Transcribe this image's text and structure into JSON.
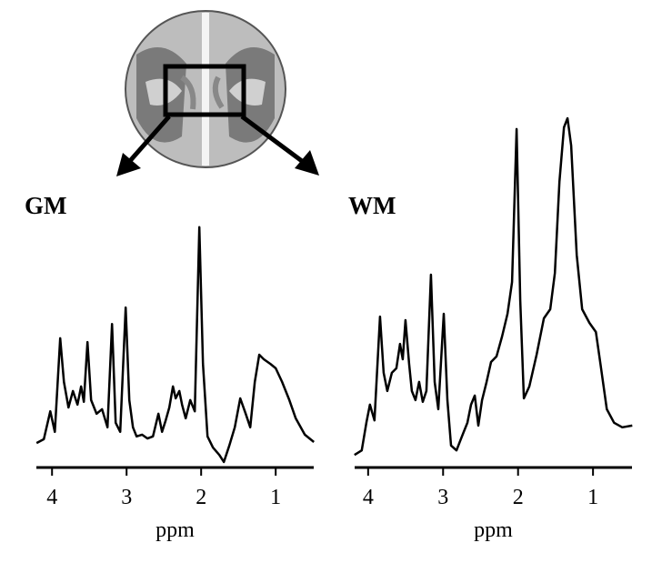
{
  "chart_data": [
    {
      "type": "line",
      "title": "GM",
      "xlabel": "ppm",
      "color": "#000000",
      "xlim": [
        4.21,
        0.49
      ],
      "xticks": [
        4,
        3,
        2,
        1
      ],
      "ylim": [
        0,
        100
      ],
      "x": [
        4.207,
        4.11,
        4.024,
        3.963,
        3.89,
        3.841,
        3.78,
        3.72,
        3.659,
        3.61,
        3.573,
        3.524,
        3.476,
        3.402,
        3.329,
        3.256,
        3.195,
        3.146,
        3.085,
        3.012,
        2.963,
        2.915,
        2.866,
        2.793,
        2.72,
        2.646,
        2.573,
        2.524,
        2.476,
        2.427,
        2.378,
        2.341,
        2.293,
        2.256,
        2.207,
        2.146,
        2.085,
        2.024,
        1.976,
        1.915,
        1.841,
        1.756,
        1.695,
        1.622,
        1.549,
        1.476,
        1.402,
        1.341,
        1.28,
        1.22,
        1.159,
        1.073,
        1.0,
        0.915,
        0.817,
        0.732,
        0.61,
        0.488
      ],
      "values": [
        7.0,
        8.1,
        16.1,
        10.2,
        37.0,
        24.5,
        17.2,
        21.9,
        18.0,
        23.2,
        18.8,
        35.9,
        19.3,
        15.4,
        16.7,
        11.5,
        41.1,
        12.8,
        10.2,
        45.8,
        19.3,
        11.5,
        8.9,
        9.4,
        8.3,
        8.9,
        15.4,
        10.2,
        13.5,
        17.2,
        23.2,
        19.8,
        21.9,
        18.0,
        14.1,
        19.3,
        16.1,
        68.8,
        29.7,
        8.9,
        5.7,
        3.6,
        1.6,
        6.3,
        11.5,
        19.8,
        15.4,
        11.5,
        24.5,
        32.3,
        31.0,
        29.7,
        28.4,
        24.5,
        19.3,
        14.1,
        9.4,
        7.3
      ]
    },
    {
      "type": "line",
      "title": "WM",
      "xlabel": "ppm",
      "color": "#000000",
      "xlim": [
        4.18,
        0.48
      ],
      "xticks": [
        4,
        3,
        2,
        1
      ],
      "ylim": [
        0,
        100
      ],
      "x": [
        4.182,
        4.085,
        4.024,
        3.976,
        3.915,
        3.842,
        3.793,
        3.745,
        3.684,
        3.623,
        3.575,
        3.538,
        3.502,
        3.453,
        3.417,
        3.368,
        3.32,
        3.271,
        3.223,
        3.162,
        3.113,
        3.064,
        2.991,
        2.943,
        2.894,
        2.821,
        2.748,
        2.676,
        2.627,
        2.578,
        2.53,
        2.481,
        2.42,
        2.36,
        2.287,
        2.214,
        2.141,
        2.08,
        2.019,
        1.971,
        1.922,
        1.849,
        1.752,
        1.655,
        1.57,
        1.509,
        1.448,
        1.388,
        1.34,
        1.291,
        1.218,
        1.145,
        1.048,
        0.962,
        0.901,
        0.816,
        0.719,
        0.61,
        0.476
      ],
      "values": [
        3.6,
        4.9,
        12.8,
        18.0,
        13.5,
        43.2,
        27.1,
        21.9,
        27.1,
        28.4,
        35.4,
        31.0,
        42.2,
        29.7,
        21.9,
        19.3,
        24.5,
        18.8,
        21.9,
        55.2,
        24.5,
        16.7,
        44.0,
        19.3,
        6.3,
        4.9,
        8.9,
        12.8,
        18.0,
        20.6,
        12.0,
        19.3,
        24.5,
        30.2,
        31.8,
        37.5,
        44.0,
        53.1,
        96.9,
        47.9,
        19.8,
        23.2,
        32.3,
        42.7,
        45.3,
        55.7,
        81.8,
        97.4,
        100,
        92.2,
        60.9,
        45.3,
        41.4,
        38.8,
        29.7,
        16.7,
        12.8,
        11.5,
        12.0
      ]
    }
  ]
}
